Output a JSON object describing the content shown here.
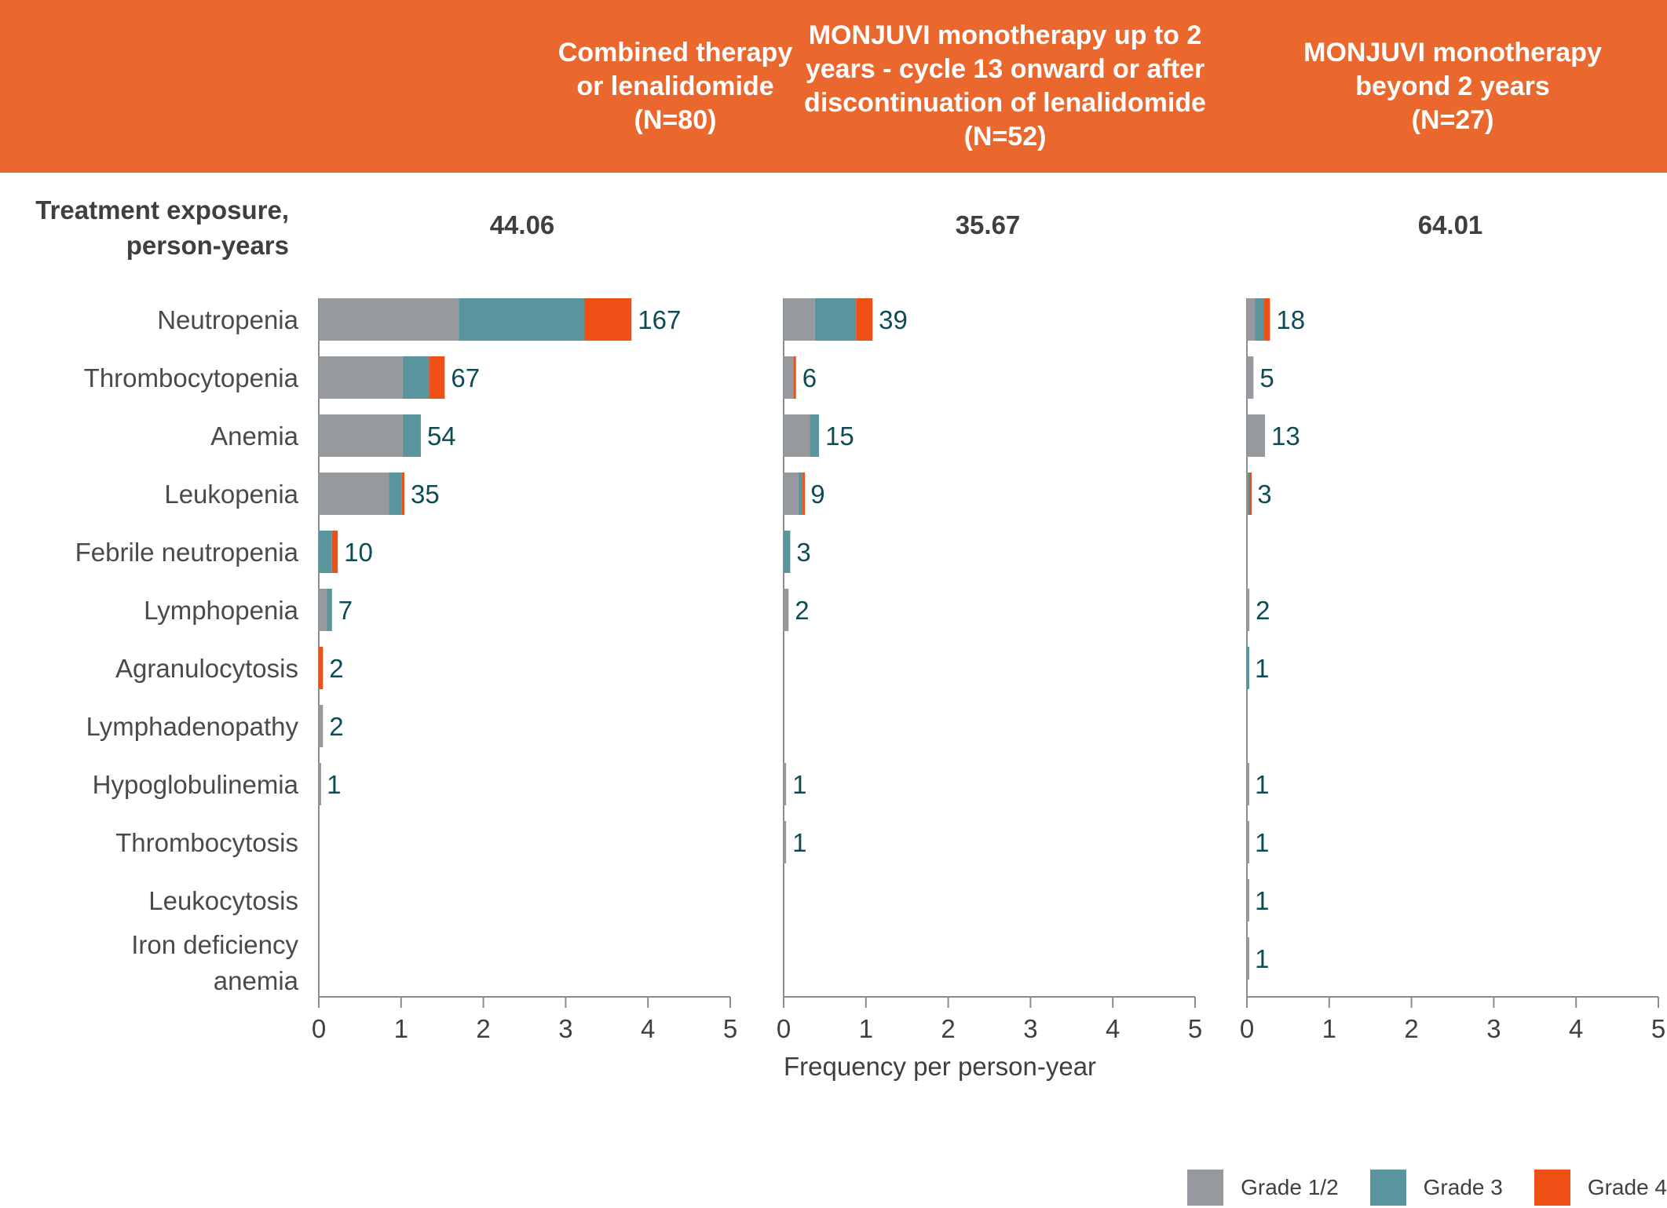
{
  "header": {
    "columns": [
      {
        "lines": [
          "Combined therapy",
          "or lenalidomide",
          "(N=80)"
        ]
      },
      {
        "lines": [
          "MONJUVI monotherapy up to 2",
          "years - cycle 13 onward or after",
          "discontinuation of lenalidomide",
          "(N=52)"
        ]
      },
      {
        "lines": [
          "MONJUVI monotherapy",
          "beyond 2 years",
          "(N=27)"
        ]
      }
    ],
    "band_color": "#ea672d"
  },
  "exposure": {
    "label_lines": [
      "Treatment exposure,",
      "person-years"
    ],
    "values": [
      "44.06",
      "35.67",
      "64.01"
    ]
  },
  "legend": [
    {
      "label": "Grade 1/2",
      "color": "#96999d"
    },
    {
      "label": "Grade 3",
      "color": "#5a949c"
    },
    {
      "label": "Grade 4",
      "color": "#ef5015"
    }
  ],
  "chart_data": {
    "type": "bar",
    "orientation": "horizontal",
    "stacked": true,
    "xlabel": "Frequency per person-year",
    "xlim": [
      0,
      5
    ],
    "xticks": [
      "0",
      "1",
      "2",
      "3",
      "4",
      "5"
    ],
    "grid": false,
    "legend_position": "bottom-right",
    "categories": [
      "Neutropenia",
      "Thrombocytopenia",
      "Anemia",
      "Leukopenia",
      "Febrile neutropenia",
      "Lymphopenia",
      "Agranulocytosis",
      "Lymphadenopathy",
      "Hypoglobulinemia",
      "Thrombocytosis",
      "Leukocytosis",
      "Iron deficiency anemia"
    ],
    "category_lines": [
      [
        "Neutropenia"
      ],
      [
        "Thrombocytopenia"
      ],
      [
        "Anemia"
      ],
      [
        "Leukopenia"
      ],
      [
        "Febrile neutropenia"
      ],
      [
        "Lymphopenia"
      ],
      [
        "Agranulocytosis"
      ],
      [
        "Lymphadenopathy"
      ],
      [
        "Hypoglobulinemia"
      ],
      [
        "Thrombocytosis"
      ],
      [
        "Leukocytosis"
      ],
      [
        "Iron deficiency",
        "anemia"
      ]
    ],
    "panels": [
      {
        "name": "Combined therapy or lenalidomide (N=80)",
        "series": [
          {
            "name": "Grade 1/2",
            "values": [
              1.7,
              1.02,
              1.02,
              0.85,
              0.0,
              0.1,
              0.0,
              0.05,
              0.02,
              0,
              0,
              0
            ]
          },
          {
            "name": "Grade 3",
            "values": [
              1.53,
              0.32,
              0.22,
              0.16,
              0.16,
              0.06,
              0.0,
              0.0,
              0.0,
              0,
              0,
              0
            ]
          },
          {
            "name": "Grade 4",
            "values": [
              0.57,
              0.19,
              0.0,
              0.03,
              0.07,
              0.0,
              0.05,
              0.0,
              0.0,
              0,
              0,
              0
            ]
          }
        ],
        "counts": [
          "167",
          "67",
          "54",
          "35",
          "10",
          "7",
          "2",
          "2",
          "1",
          null,
          null,
          null
        ]
      },
      {
        "name": "MONJUVI monotherapy up to 2 years - cycle 13 onward or after discontinuation of lenalidomide (N=52)",
        "series": [
          {
            "name": "Grade 1/2",
            "values": [
              0.38,
              0.12,
              0.32,
              0.18,
              0.0,
              0.06,
              0,
              0,
              0.03,
              0.03,
              0,
              0
            ]
          },
          {
            "name": "Grade 3",
            "values": [
              0.5,
              0.0,
              0.11,
              0.05,
              0.08,
              0.0,
              0,
              0,
              0.0,
              0.0,
              0,
              0
            ]
          },
          {
            "name": "Grade 4",
            "values": [
              0.2,
              0.03,
              0.0,
              0.02,
              0.0,
              0.0,
              0,
              0,
              0.0,
              0.0,
              0,
              0
            ]
          }
        ],
        "counts": [
          "39",
          "6",
          "15",
          "9",
          "3",
          "2",
          null,
          null,
          "1",
          "1",
          null,
          null
        ]
      },
      {
        "name": "MONJUVI monotherapy beyond 2 years (N=27)",
        "series": [
          {
            "name": "Grade 1/2",
            "values": [
              0.1,
              0.08,
              0.22,
              0.01,
              0,
              0.03,
              0.0,
              0,
              0.02,
              0.02,
              0.02,
              0.02
            ]
          },
          {
            "name": "Grade 3",
            "values": [
              0.11,
              0.0,
              0.0,
              0.02,
              0,
              0.0,
              0.02,
              0,
              0.0,
              0.0,
              0.0,
              0.0
            ]
          },
          {
            "name": "Grade 4",
            "values": [
              0.07,
              0.0,
              0.0,
              0.02,
              0,
              0.0,
              0.0,
              0,
              0.0,
              0.0,
              0.0,
              0.0
            ]
          }
        ],
        "counts": [
          "18",
          "5",
          "13",
          "3",
          null,
          "2",
          "1",
          null,
          "1",
          "1",
          "1",
          "1"
        ]
      }
    ]
  }
}
